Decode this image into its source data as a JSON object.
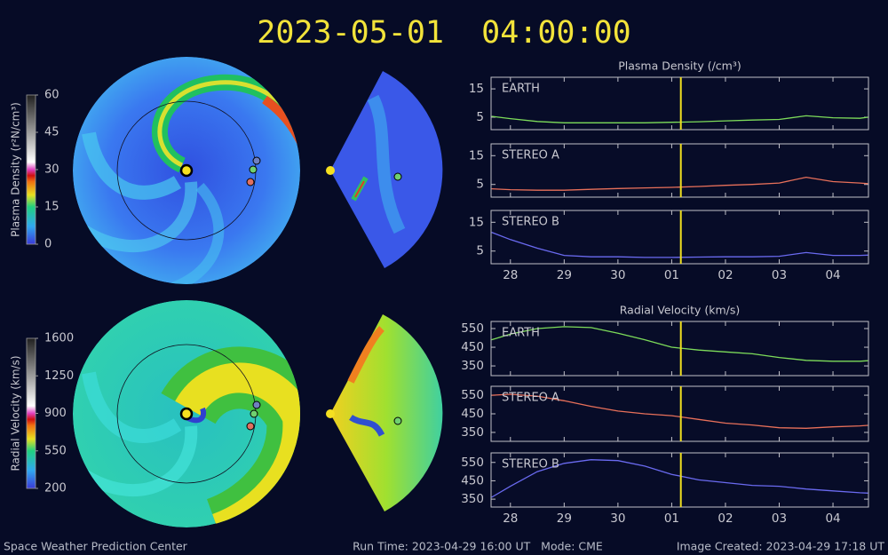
{
  "title": "2023-05-01  04:00:00",
  "colorbars": [
    {
      "label": "Plasma Density (r²N/cm³)",
      "range": [
        0,
        60
      ],
      "ticks": [
        0,
        15,
        30,
        45,
        60
      ]
    },
    {
      "label": "Radial Velocity (km/s)",
      "range": [
        200,
        1600
      ],
      "ticks": [
        200,
        550,
        900,
        1250,
        1600
      ]
    }
  ],
  "chart_data": [
    {
      "type": "line",
      "title": "Plasma Density (/cm³)",
      "xlim": [
        -0.36,
        6.66
      ],
      "xticks": [
        {
          "value": 0,
          "label": "28"
        },
        {
          "value": 1,
          "label": "29"
        },
        {
          "value": 2,
          "label": "30"
        },
        {
          "value": 3,
          "label": "01"
        },
        {
          "value": 4,
          "label": "02"
        },
        {
          "value": 5,
          "label": "03"
        },
        {
          "value": 6,
          "label": "04"
        }
      ],
      "time_marker": 3.17,
      "x": [
        -0.35,
        0,
        0.5,
        1,
        1.5,
        2,
        2.5,
        3,
        3.5,
        4,
        4.5,
        5,
        5.5,
        6,
        6.5,
        6.65
      ],
      "series": [
        {
          "name": "EARTH",
          "color": "#7ddc5a",
          "ylim": [
            0.6,
            19.1
          ],
          "yticks": [
            5,
            15
          ],
          "values": [
            5.3,
            4.5,
            3.5,
            3,
            3,
            3,
            3,
            3.2,
            3.4,
            3.7,
            4,
            4.2,
            5.5,
            4.8,
            4.6,
            5
          ]
        },
        {
          "name": "STEREO A",
          "color": "#e8705a",
          "ylim": [
            0.6,
            19.1
          ],
          "yticks": [
            5,
            15
          ],
          "values": [
            3.5,
            3.2,
            3,
            3,
            3.3,
            3.6,
            3.8,
            4,
            4.3,
            4.7,
            5,
            5.5,
            7.5,
            6,
            5.5,
            5.3
          ]
        },
        {
          "name": "STEREO B",
          "color": "#6a6af0",
          "ylim": [
            0.6,
            19.1
          ],
          "yticks": [
            5,
            15
          ],
          "values": [
            11.5,
            9,
            6,
            3.5,
            3,
            3,
            2.8,
            2.8,
            2.9,
            3,
            3,
            3.2,
            4.5,
            3.5,
            3.5,
            3.6
          ]
        }
      ]
    },
    {
      "type": "line",
      "title": "Radial Velocity (km/s)",
      "xlim": [
        -0.36,
        6.66
      ],
      "xticks": [
        {
          "value": 0,
          "label": "28"
        },
        {
          "value": 1,
          "label": "29"
        },
        {
          "value": 2,
          "label": "30"
        },
        {
          "value": 3,
          "label": "01"
        },
        {
          "value": 4,
          "label": "02"
        },
        {
          "value": 5,
          "label": "03"
        },
        {
          "value": 6,
          "label": "04"
        }
      ],
      "time_marker": 3.17,
      "x": [
        -0.35,
        0,
        0.5,
        1,
        1.5,
        2,
        2.5,
        3,
        3.5,
        4,
        4.5,
        5,
        5.5,
        6,
        6.5,
        6.65
      ],
      "series": [
        {
          "name": "EARTH",
          "color": "#7ddc5a",
          "ylim": [
            298,
            588
          ],
          "yticks": [
            350,
            450,
            550
          ],
          "values": [
            490,
            520,
            550,
            560,
            555,
            525,
            490,
            450,
            435,
            425,
            415,
            395,
            380,
            375,
            375,
            378
          ]
        },
        {
          "name": "STEREO A",
          "color": "#e8705a",
          "ylim": [
            302,
            598
          ],
          "yticks": [
            350,
            450,
            550
          ],
          "values": [
            550,
            555,
            545,
            520,
            490,
            465,
            450,
            440,
            420,
            400,
            390,
            375,
            372,
            380,
            385,
            388
          ]
        },
        {
          "name": "STEREO B",
          "color": "#6a6af0",
          "ylim": [
            307,
            602
          ],
          "yticks": [
            350,
            450,
            550
          ],
          "values": [
            360,
            420,
            500,
            545,
            565,
            560,
            530,
            485,
            455,
            440,
            425,
            420,
            405,
            395,
            385,
            383
          ]
        }
      ]
    }
  ],
  "footer": {
    "left": "Space Weather Prediction Center",
    "center": "Run Time: 2023-04-29 16:00 UT   Mode: CME",
    "right": "Image Created: 2023-04-29 17:18 UT"
  }
}
